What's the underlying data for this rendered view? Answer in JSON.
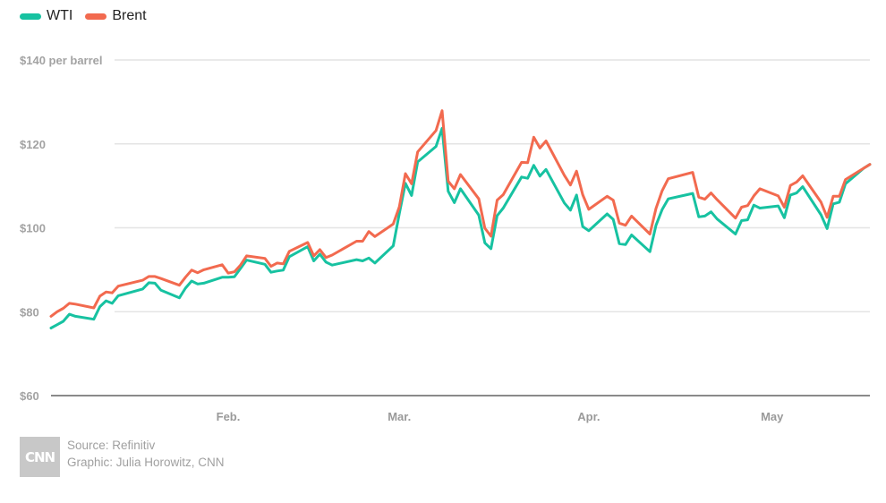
{
  "legend": {
    "items": [
      {
        "label": "WTI",
        "color": "#17c2a1"
      },
      {
        "label": "Brent",
        "color": "#f26a4f"
      }
    ]
  },
  "chart_data": {
    "type": "line",
    "y_unit_label": "per barrel",
    "ylim": [
      60,
      140
    ],
    "yticks": [
      60,
      80,
      100,
      120,
      140
    ],
    "ytick_labels": [
      "$60",
      "$80",
      "$100",
      "$120",
      "$140 per barrel"
    ],
    "xlim": [
      "2022-01-03",
      "2022-05-17"
    ],
    "xticks": [
      {
        "date": "2022-02-01",
        "label": "Feb."
      },
      {
        "date": "2022-03-01",
        "label": "Mar."
      },
      {
        "date": "2022-04-01",
        "label": "Apr."
      },
      {
        "date": "2022-05-01",
        "label": "May"
      }
    ],
    "grid": true,
    "legend_position": "top-left",
    "series": [
      {
        "name": "WTI",
        "color": "#17c2a1",
        "points": [
          [
            "2022-01-03",
            76.1
          ],
          [
            "2022-01-04",
            76.9
          ],
          [
            "2022-01-05",
            77.7
          ],
          [
            "2022-01-06",
            79.4
          ],
          [
            "2022-01-07",
            78.9
          ],
          [
            "2022-01-10",
            78.2
          ],
          [
            "2022-01-11",
            81.2
          ],
          [
            "2022-01-12",
            82.6
          ],
          [
            "2022-01-13",
            82.0
          ],
          [
            "2022-01-14",
            83.8
          ],
          [
            "2022-01-18",
            85.4
          ],
          [
            "2022-01-19",
            86.9
          ],
          [
            "2022-01-20",
            86.8
          ],
          [
            "2022-01-21",
            85.1
          ],
          [
            "2022-01-24",
            83.3
          ],
          [
            "2022-01-25",
            85.6
          ],
          [
            "2022-01-26",
            87.3
          ],
          [
            "2022-01-27",
            86.6
          ],
          [
            "2022-01-28",
            86.8
          ],
          [
            "2022-01-31",
            88.2
          ],
          [
            "2022-02-01",
            88.2
          ],
          [
            "2022-02-02",
            88.3
          ],
          [
            "2022-02-03",
            90.3
          ],
          [
            "2022-02-04",
            92.3
          ],
          [
            "2022-02-07",
            91.3
          ],
          [
            "2022-02-08",
            89.4
          ],
          [
            "2022-02-09",
            89.7
          ],
          [
            "2022-02-10",
            89.9
          ],
          [
            "2022-02-11",
            93.1
          ],
          [
            "2022-02-14",
            95.5
          ],
          [
            "2022-02-15",
            92.1
          ],
          [
            "2022-02-16",
            93.7
          ],
          [
            "2022-02-17",
            91.8
          ],
          [
            "2022-02-18",
            91.1
          ],
          [
            "2022-02-22",
            92.4
          ],
          [
            "2022-02-23",
            92.1
          ],
          [
            "2022-02-24",
            92.8
          ],
          [
            "2022-02-25",
            91.6
          ],
          [
            "2022-02-28",
            95.7
          ],
          [
            "2022-03-01",
            103.4
          ],
          [
            "2022-03-02",
            110.6
          ],
          [
            "2022-03-03",
            107.7
          ],
          [
            "2022-03-04",
            115.7
          ],
          [
            "2022-03-07",
            119.4
          ],
          [
            "2022-03-08",
            123.7
          ],
          [
            "2022-03-09",
            108.7
          ],
          [
            "2022-03-10",
            106.0
          ],
          [
            "2022-03-11",
            109.3
          ],
          [
            "2022-03-14",
            103.0
          ],
          [
            "2022-03-15",
            96.4
          ],
          [
            "2022-03-16",
            95.0
          ],
          [
            "2022-03-17",
            102.9
          ],
          [
            "2022-03-18",
            104.7
          ],
          [
            "2022-03-21",
            112.1
          ],
          [
            "2022-03-22",
            111.8
          ],
          [
            "2022-03-23",
            114.9
          ],
          [
            "2022-03-24",
            112.3
          ],
          [
            "2022-03-25",
            113.9
          ],
          [
            "2022-03-28",
            105.9
          ],
          [
            "2022-03-29",
            104.2
          ],
          [
            "2022-03-30",
            107.8
          ],
          [
            "2022-03-31",
            100.3
          ],
          [
            "2022-04-01",
            99.3
          ],
          [
            "2022-04-04",
            103.3
          ],
          [
            "2022-04-05",
            102.0
          ],
          [
            "2022-04-06",
            96.2
          ],
          [
            "2022-04-07",
            96.0
          ],
          [
            "2022-04-08",
            98.3
          ],
          [
            "2022-04-11",
            94.3
          ],
          [
            "2022-04-12",
            100.6
          ],
          [
            "2022-04-13",
            104.3
          ],
          [
            "2022-04-14",
            106.9
          ],
          [
            "2022-04-18",
            108.2
          ],
          [
            "2022-04-19",
            102.6
          ],
          [
            "2022-04-20",
            102.8
          ],
          [
            "2022-04-21",
            103.8
          ],
          [
            "2022-04-22",
            102.1
          ],
          [
            "2022-04-25",
            98.5
          ],
          [
            "2022-04-26",
            101.7
          ],
          [
            "2022-04-27",
            101.9
          ],
          [
            "2022-04-28",
            105.4
          ],
          [
            "2022-04-29",
            104.7
          ],
          [
            "2022-05-02",
            105.2
          ],
          [
            "2022-05-03",
            102.4
          ],
          [
            "2022-05-04",
            107.8
          ],
          [
            "2022-05-05",
            108.3
          ],
          [
            "2022-05-06",
            109.8
          ],
          [
            "2022-05-09",
            103.1
          ],
          [
            "2022-05-10",
            99.8
          ],
          [
            "2022-05-11",
            105.7
          ],
          [
            "2022-05-12",
            106.1
          ],
          [
            "2022-05-13",
            110.5
          ],
          [
            "2022-05-16",
            114.2
          ],
          [
            "2022-05-17",
            115.1
          ]
        ]
      },
      {
        "name": "Brent",
        "color": "#f26a4f",
        "points": [
          [
            "2022-01-03",
            78.9
          ],
          [
            "2022-01-04",
            80.0
          ],
          [
            "2022-01-05",
            80.8
          ],
          [
            "2022-01-06",
            82.0
          ],
          [
            "2022-01-07",
            81.8
          ],
          [
            "2022-01-10",
            80.9
          ],
          [
            "2022-01-11",
            83.7
          ],
          [
            "2022-01-12",
            84.7
          ],
          [
            "2022-01-13",
            84.5
          ],
          [
            "2022-01-14",
            86.1
          ],
          [
            "2022-01-18",
            87.5
          ],
          [
            "2022-01-19",
            88.4
          ],
          [
            "2022-01-20",
            88.4
          ],
          [
            "2022-01-21",
            87.9
          ],
          [
            "2022-01-24",
            86.3
          ],
          [
            "2022-01-25",
            88.2
          ],
          [
            "2022-01-26",
            89.9
          ],
          [
            "2022-01-27",
            89.3
          ],
          [
            "2022-01-28",
            90.0
          ],
          [
            "2022-01-31",
            91.2
          ],
          [
            "2022-02-01",
            89.2
          ],
          [
            "2022-02-02",
            89.5
          ],
          [
            "2022-02-03",
            91.1
          ],
          [
            "2022-02-04",
            93.3
          ],
          [
            "2022-02-07",
            92.7
          ],
          [
            "2022-02-08",
            90.8
          ],
          [
            "2022-02-09",
            91.6
          ],
          [
            "2022-02-10",
            91.4
          ],
          [
            "2022-02-11",
            94.4
          ],
          [
            "2022-02-14",
            96.5
          ],
          [
            "2022-02-15",
            93.3
          ],
          [
            "2022-02-16",
            94.8
          ],
          [
            "2022-02-17",
            92.9
          ],
          [
            "2022-02-18",
            93.5
          ],
          [
            "2022-02-22",
            96.8
          ],
          [
            "2022-02-23",
            96.8
          ],
          [
            "2022-02-24",
            99.1
          ],
          [
            "2022-02-25",
            97.9
          ],
          [
            "2022-02-28",
            100.9
          ],
          [
            "2022-03-01",
            105.0
          ],
          [
            "2022-03-02",
            112.9
          ],
          [
            "2022-03-03",
            110.5
          ],
          [
            "2022-03-04",
            118.1
          ],
          [
            "2022-03-07",
            123.2
          ],
          [
            "2022-03-08",
            127.9
          ],
          [
            "2022-03-09",
            111.1
          ],
          [
            "2022-03-10",
            109.3
          ],
          [
            "2022-03-11",
            112.7
          ],
          [
            "2022-03-14",
            106.9
          ],
          [
            "2022-03-15",
            99.9
          ],
          [
            "2022-03-16",
            98.0
          ],
          [
            "2022-03-17",
            106.6
          ],
          [
            "2022-03-18",
            107.9
          ],
          [
            "2022-03-21",
            115.6
          ],
          [
            "2022-03-22",
            115.5
          ],
          [
            "2022-03-23",
            121.6
          ],
          [
            "2022-03-24",
            119.0
          ],
          [
            "2022-03-25",
            120.7
          ],
          [
            "2022-03-28",
            112.5
          ],
          [
            "2022-03-29",
            110.2
          ],
          [
            "2022-03-30",
            113.5
          ],
          [
            "2022-03-31",
            107.9
          ],
          [
            "2022-04-01",
            104.4
          ],
          [
            "2022-04-04",
            107.5
          ],
          [
            "2022-04-05",
            106.6
          ],
          [
            "2022-04-06",
            101.1
          ],
          [
            "2022-04-07",
            100.6
          ],
          [
            "2022-04-08",
            102.8
          ],
          [
            "2022-04-11",
            98.5
          ],
          [
            "2022-04-12",
            104.6
          ],
          [
            "2022-04-13",
            108.8
          ],
          [
            "2022-04-14",
            111.7
          ],
          [
            "2022-04-18",
            113.2
          ],
          [
            "2022-04-19",
            107.3
          ],
          [
            "2022-04-20",
            106.8
          ],
          [
            "2022-04-21",
            108.3
          ],
          [
            "2022-04-22",
            106.7
          ],
          [
            "2022-04-25",
            102.3
          ],
          [
            "2022-04-26",
            104.9
          ],
          [
            "2022-04-27",
            105.3
          ],
          [
            "2022-04-28",
            107.6
          ],
          [
            "2022-04-29",
            109.3
          ],
          [
            "2022-05-02",
            107.6
          ],
          [
            "2022-05-03",
            104.9
          ],
          [
            "2022-05-04",
            110.1
          ],
          [
            "2022-05-05",
            110.9
          ],
          [
            "2022-05-06",
            112.4
          ],
          [
            "2022-05-09",
            106.1
          ],
          [
            "2022-05-10",
            102.5
          ],
          [
            "2022-05-11",
            107.5
          ],
          [
            "2022-05-12",
            107.5
          ],
          [
            "2022-05-13",
            111.5
          ],
          [
            "2022-05-16",
            114.2
          ],
          [
            "2022-05-17",
            115.1
          ]
        ]
      }
    ]
  },
  "footer": {
    "logo_text": "CNN",
    "source": "Source: Refinitiv",
    "graphic": "Graphic: Julia Horowitz, CNN"
  }
}
